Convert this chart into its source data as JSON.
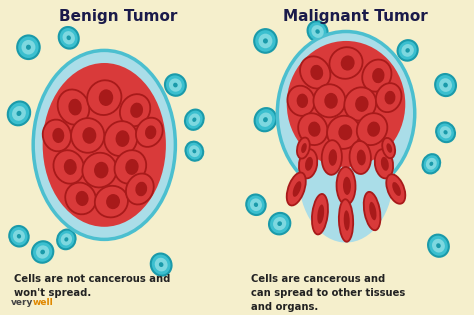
{
  "left_bg": "#f5efcc",
  "right_bg": "#c4c4d4",
  "left_title": "Benign Tumor",
  "right_title": "Malignant Tumor",
  "left_caption": "Cells are not cancerous and\nwon't spread.",
  "right_caption": "Cells are cancerous and\ncan spread to other tissues\nand organs.",
  "tumor_red": "#d93a3a",
  "tumor_dark_red": "#a81a1a",
  "cell_blue_face": "#3bbfcf",
  "cell_blue_edge": "#1a9aaa",
  "cell_blue_inner": "#7dd8e0",
  "tumor_halo": "#aadde8",
  "tumor_halo_edge": "#4bbfcf",
  "title_color": "#1a1a4a",
  "caption_color": "#222222",
  "title_fontsize": 11,
  "caption_fontsize": 7.2,
  "watermark_grey": "#444444",
  "watermark_yellow": "#e08800"
}
